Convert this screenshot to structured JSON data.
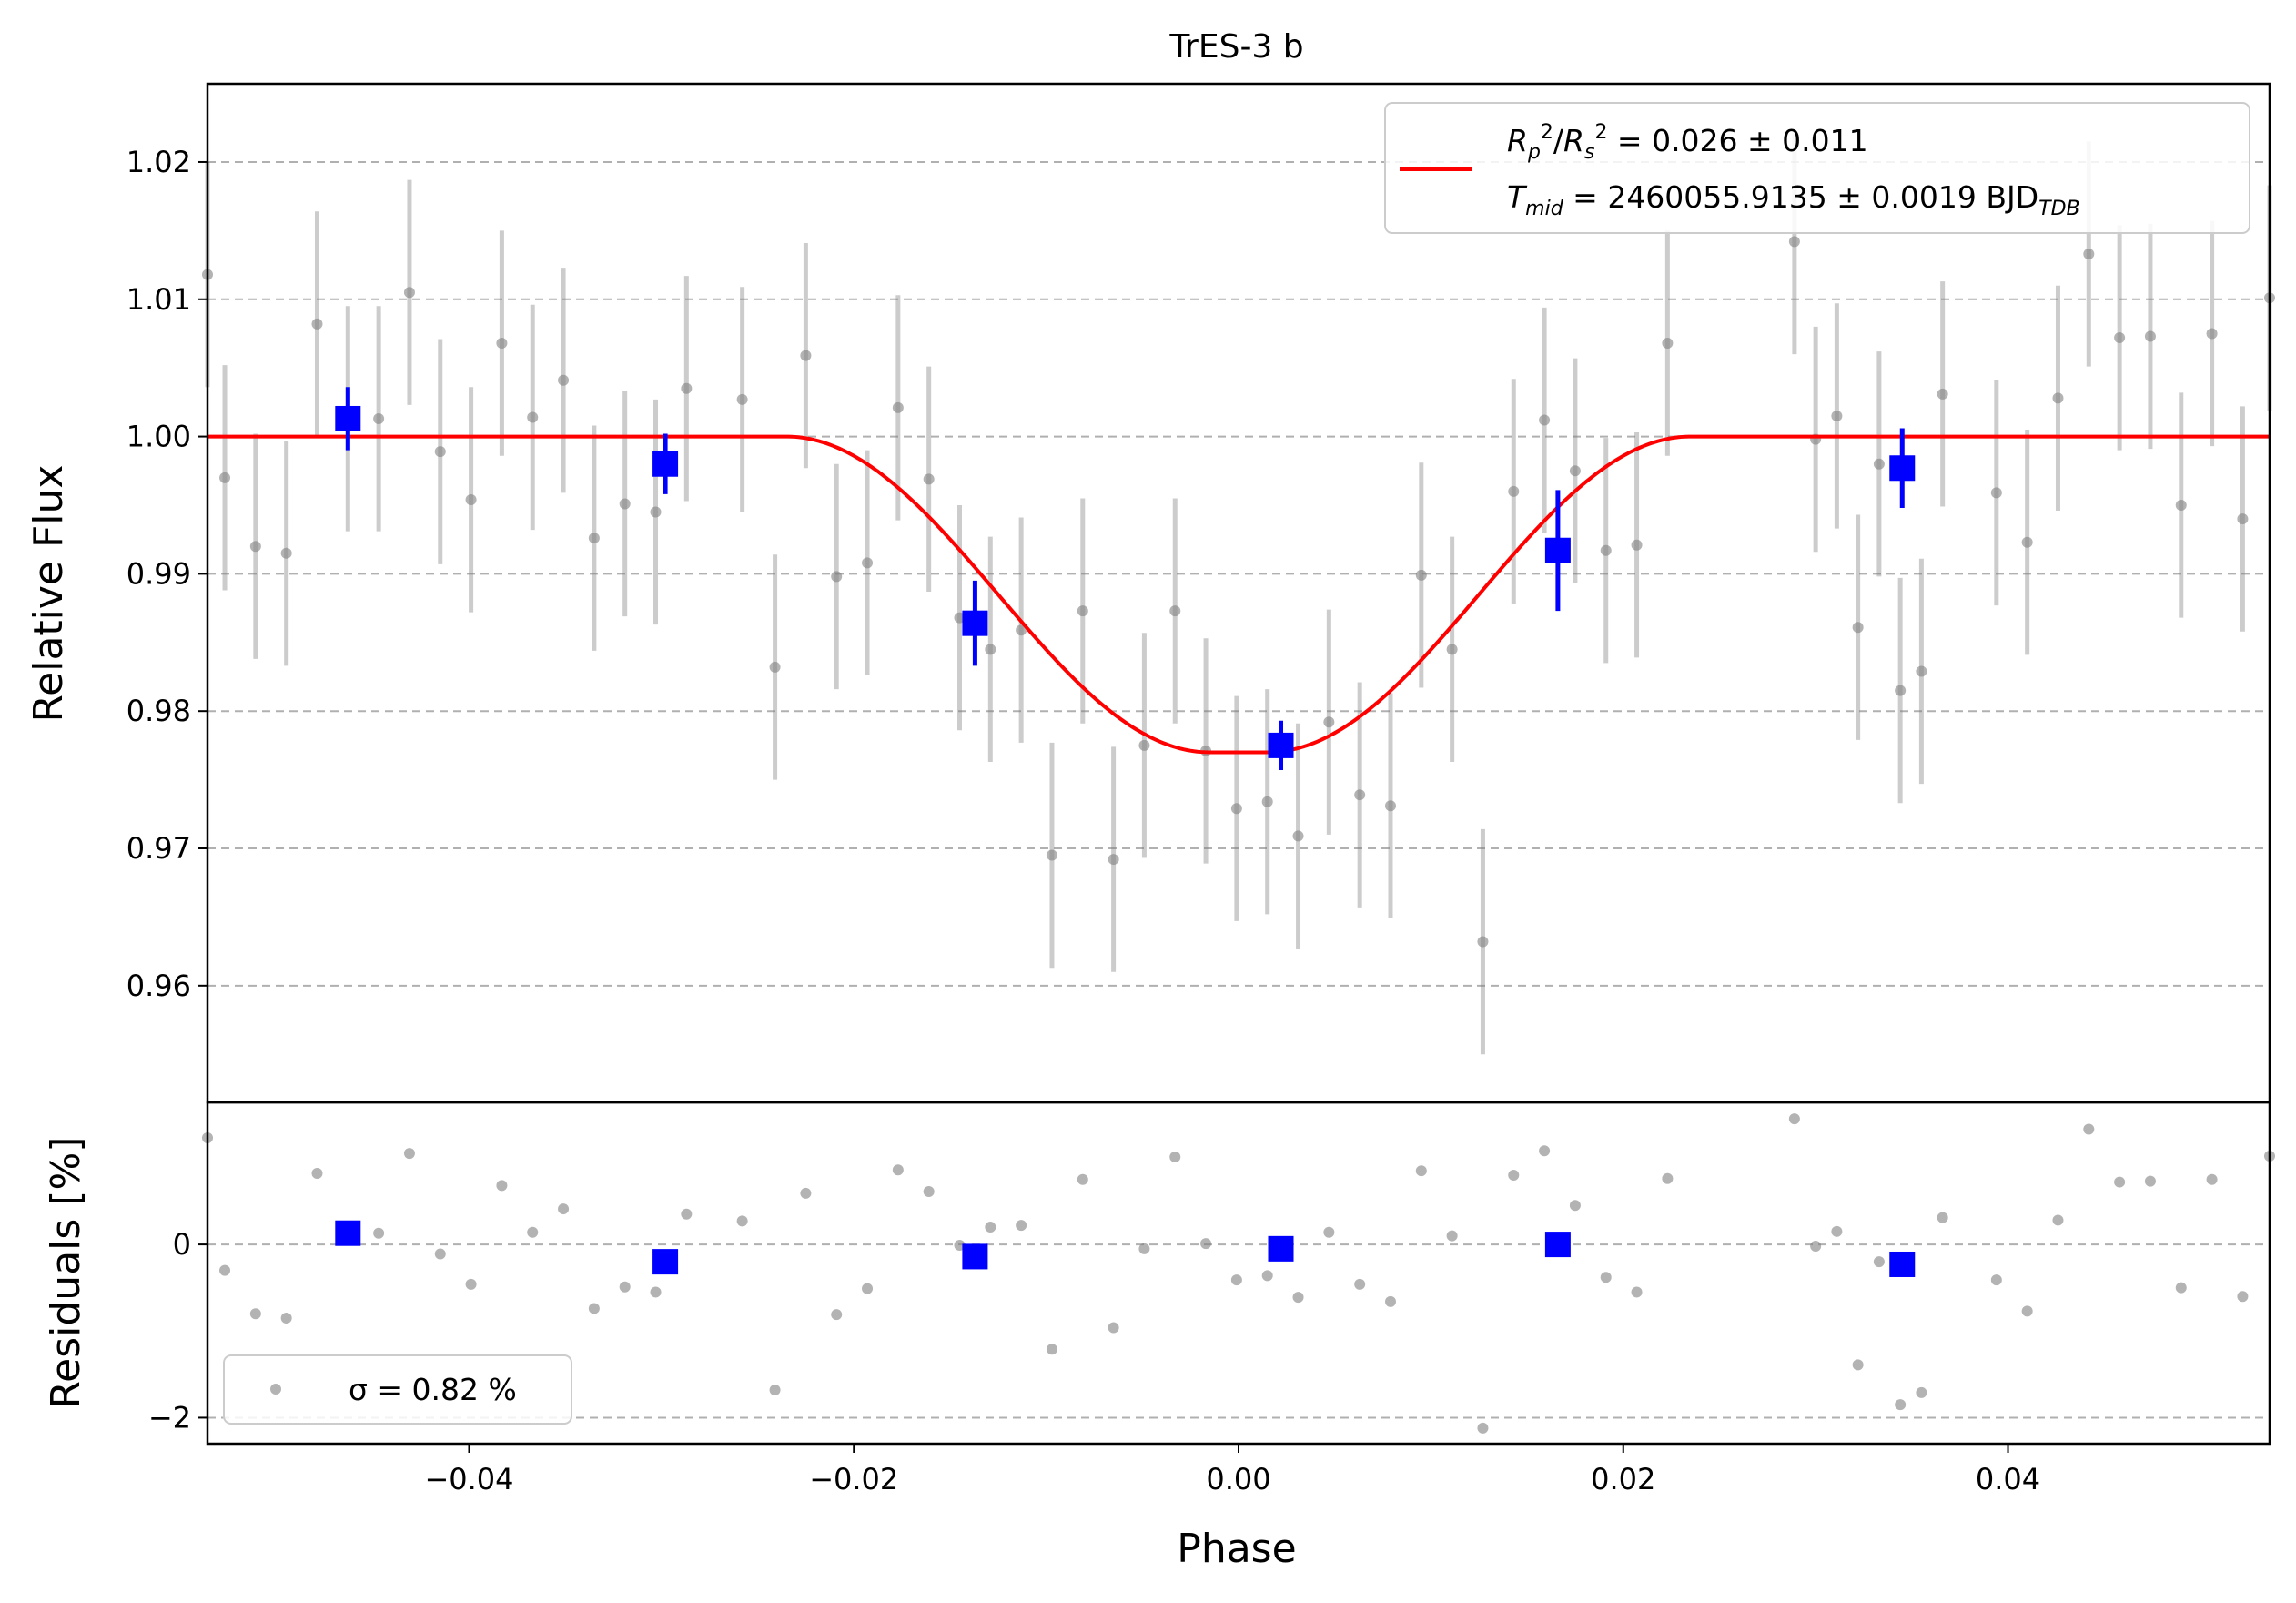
{
  "chart_data": [
    {
      "type": "scatter",
      "panel": "light-curve",
      "title": "TrES-3 b",
      "xlabel": "",
      "ylabel": "Relative Flux",
      "xlim": [
        -0.0536,
        0.0536
      ],
      "ylim": [
        0.9515,
        1.0257
      ],
      "y_ticks": [
        0.96,
        0.97,
        0.98,
        0.99,
        1.0,
        1.01,
        1.02
      ],
      "y_tick_labels": [
        "0.96",
        "0.97",
        "0.98",
        "0.99",
        "1.00",
        "1.01",
        "1.02"
      ],
      "grid": "horizontal dashed",
      "legend_position": "top-right",
      "legend": {
        "line1": "R_p^2/R_s^2 = 0.026 ± 0.011",
        "line2": "T_mid = 2460055.9135 ± 0.0019 BJD_TDB"
      },
      "model": {
        "name": "transit model",
        "color": "#ff0000",
        "baseline": 1.0,
        "depth_min": 0.977,
        "t_total": 0.0235,
        "t_flat": 0.0015
      },
      "raw_points": {
        "color": "#808080",
        "x": [
          -0.0536,
          -0.0527,
          -0.0511,
          -0.0495,
          -0.0479,
          -0.0463,
          -0.0447,
          -0.0431,
          -0.0415,
          -0.0399,
          -0.0383,
          -0.0367,
          -0.0351,
          -0.0335,
          -0.0319,
          -0.0303,
          -0.0287,
          -0.0258,
          -0.0241,
          -0.0225,
          -0.0209,
          -0.0193,
          -0.0177,
          -0.0161,
          -0.0145,
          -0.0129,
          -0.0113,
          -0.0097,
          -0.0081,
          -0.0065,
          -0.0049,
          -0.0033,
          -0.0017,
          -0.0001,
          0.0015,
          0.0031,
          0.0047,
          0.0063,
          0.0079,
          0.0095,
          0.0111,
          0.0127,
          0.0143,
          0.0159,
          0.0175,
          0.0191,
          0.0207,
          0.0223,
          0.0289,
          0.03,
          0.0311,
          0.0322,
          0.0333,
          0.0344,
          0.0355,
          0.0366,
          0.0394,
          0.041,
          0.0426,
          0.0442,
          0.0458,
          0.0474,
          0.049,
          0.0506,
          0.0522,
          0.0536
        ],
        "y": [
          1.0118,
          0.997,
          0.992,
          0.9915,
          1.0082,
          1.0013,
          1.0013,
          1.0105,
          0.9989,
          0.9954,
          1.0068,
          1.0014,
          1.0041,
          0.9926,
          0.9951,
          0.9945,
          1.0035,
          1.0027,
          0.9832,
          1.0059,
          0.9898,
          0.9908,
          1.0021,
          0.9969,
          0.9868,
          0.9845,
          0.9859,
          0.9695,
          0.9873,
          0.9692,
          0.9775,
          0.9873,
          0.9771,
          0.9729,
          0.9734,
          0.9709,
          0.9792,
          0.9739,
          0.9731,
          0.9899,
          0.9845,
          0.9632,
          0.996,
          1.0012,
          0.9975,
          0.9917,
          0.9921,
          1.0068,
          1.0142,
          0.9998,
          1.0015,
          0.9861,
          0.998,
          0.9815,
          0.9829,
          1.0031,
          0.9959,
          0.9923,
          1.0028,
          1.0133,
          1.0072,
          1.0073,
          0.995,
          1.0075,
          0.994,
          1.0101
        ],
        "yerr": 0.0082
      },
      "binned_points": {
        "color": "#0000ff",
        "x": [
          -0.0463,
          -0.0298,
          -0.0137,
          0.0022,
          0.0166,
          0.0345
        ],
        "y": [
          1.0013,
          0.998,
          0.9864,
          0.9775,
          0.9917,
          0.9977
        ],
        "yerr": [
          0.0023,
          0.0022,
          0.0031,
          0.0018,
          0.0044,
          0.0029
        ]
      }
    },
    {
      "type": "scatter",
      "panel": "residuals",
      "xlabel": "Phase",
      "ylabel": "Residuals [%]",
      "xlim": [
        -0.0536,
        0.0536
      ],
      "ylim": [
        -2.3,
        1.64
      ],
      "x_ticks": [
        -0.04,
        -0.02,
        0.0,
        0.02,
        0.04
      ],
      "x_tick_labels": [
        "−0.04",
        "−0.02",
        "0.00",
        "0.02",
        "0.04"
      ],
      "y_ticks": [
        -2,
        0
      ],
      "y_tick_labels": [
        "−2",
        "0"
      ],
      "grid": "horizontal dashed",
      "legend_position": "bottom-left",
      "legend": {
        "label": "σ = 0.82 %"
      },
      "raw_points": {
        "color": "#808080",
        "x": [
          -0.0536,
          -0.0527,
          -0.0511,
          -0.0495,
          -0.0479,
          -0.0463,
          -0.0447,
          -0.0431,
          -0.0415,
          -0.0399,
          -0.0383,
          -0.0367,
          -0.0351,
          -0.0335,
          -0.0319,
          -0.0303,
          -0.0287,
          -0.0258,
          -0.0241,
          -0.0225,
          -0.0209,
          -0.0193,
          -0.0177,
          -0.0161,
          -0.0145,
          -0.0129,
          -0.0113,
          -0.0097,
          -0.0081,
          -0.0065,
          -0.0049,
          -0.0033,
          -0.0017,
          -0.0001,
          0.0015,
          0.0031,
          0.0047,
          0.0063,
          0.0079,
          0.0095,
          0.0111,
          0.0127,
          0.0143,
          0.0159,
          0.0175,
          0.0191,
          0.0207,
          0.0223,
          0.0289,
          0.03,
          0.0311,
          0.0322,
          0.0333,
          0.0344,
          0.0355,
          0.0366,
          0.0394,
          0.041,
          0.0426,
          0.0442,
          0.0458,
          0.0474,
          0.049,
          0.0506,
          0.0522,
          0.0536
        ],
        "y": [
          1.23,
          -0.3,
          -0.8,
          -0.85,
          0.82,
          0.13,
          0.13,
          1.05,
          -0.11,
          -0.46,
          0.68,
          0.14,
          0.41,
          -0.74,
          -0.49,
          -0.55,
          0.35,
          0.27,
          -1.68,
          0.59,
          -0.81,
          -0.51,
          0.86,
          0.61,
          -0.01,
          0.2,
          0.22,
          -1.21,
          0.75,
          -0.96,
          -0.05,
          1.01,
          0.01,
          -0.41,
          -0.36,
          -0.61,
          0.14,
          -0.46,
          -0.66,
          0.85,
          0.1,
          -2.12,
          0.8,
          1.08,
          0.45,
          -0.38,
          -0.55,
          0.76,
          1.45,
          -0.02,
          0.15,
          -1.39,
          -0.2,
          -1.85,
          -1.71,
          0.31,
          -0.41,
          -0.77,
          0.28,
          1.33,
          0.72,
          0.73,
          -0.5,
          0.75,
          -0.6,
          1.02
        ]
      },
      "binned_points": {
        "color": "#0000ff",
        "x": [
          -0.0463,
          -0.0298,
          -0.0137,
          0.0022,
          0.0166,
          0.0345
        ],
        "y": [
          0.13,
          -0.2,
          -0.14,
          -0.05,
          0.0,
          -0.23
        ]
      }
    }
  ]
}
